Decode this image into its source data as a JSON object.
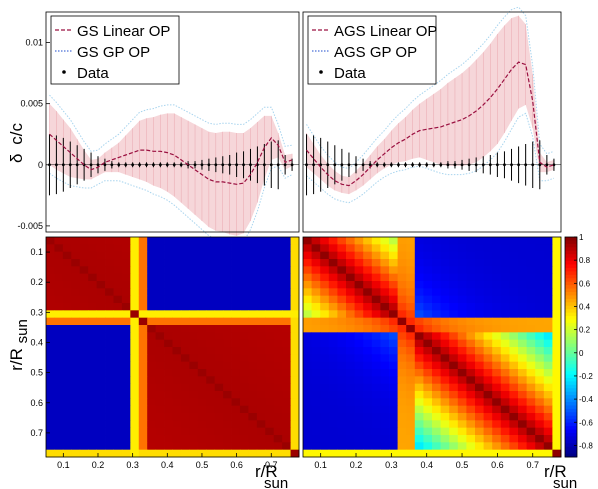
{
  "chart_data": [
    {
      "type": "line",
      "panel": "top-left",
      "ylabel_parts": [
        "δ",
        "c/c"
      ],
      "xlim": [
        0.05,
        0.78
      ],
      "ylim": [
        -0.0055,
        0.0125
      ],
      "yticks": [
        -0.005,
        0,
        0.005,
        0.01
      ],
      "ytick_labels": [
        "-0.005",
        "0",
        "0.005",
        "0.01"
      ],
      "legend_position": "top-left",
      "legend": [
        "GS Linear OP",
        "GS GP OP",
        "Data"
      ],
      "model_x": [
        0.06,
        0.08,
        0.1,
        0.12,
        0.14,
        0.16,
        0.18,
        0.2,
        0.22,
        0.24,
        0.26,
        0.28,
        0.3,
        0.32,
        0.34,
        0.36,
        0.38,
        0.4,
        0.42,
        0.44,
        0.46,
        0.48,
        0.5,
        0.52,
        0.54,
        0.56,
        0.58,
        0.6,
        0.62,
        0.64,
        0.66,
        0.68,
        0.7,
        0.72,
        0.74,
        0.76
      ],
      "linear_y": [
        0.0025,
        0.002,
        0.0015,
        0.001,
        0.0005,
        0.0,
        -0.0004,
        -0.0002,
        0.0002,
        0.0004,
        0.0006,
        0.0008,
        0.001,
        0.0012,
        0.0012,
        0.0011,
        0.0011,
        0.001,
        0.0008,
        0.0004,
        0.0,
        -0.0004,
        -0.0008,
        -0.0012,
        -0.0014,
        -0.0014,
        -0.0015,
        -0.0016,
        -0.0015,
        -0.0008,
        0.0002,
        0.0014,
        0.0022,
        0.0016,
        0.0002,
        0.0004
      ],
      "band_half_width": [
        0.0025,
        0.0024,
        0.0022,
        0.002,
        0.0016,
        0.0012,
        0.0008,
        0.0007,
        0.0008,
        0.001,
        0.0012,
        0.0016,
        0.002,
        0.0024,
        0.0026,
        0.0028,
        0.003,
        0.0032,
        0.0034,
        0.0035,
        0.0036,
        0.0037,
        0.0038,
        0.0039,
        0.004,
        0.0041,
        0.0042,
        0.0042,
        0.0041,
        0.0038,
        0.0033,
        0.0026,
        0.0018,
        0.001,
        0.0006,
        0.0005
      ],
      "gp_offset": 0.0007,
      "data_x": [
        0.06,
        0.08,
        0.1,
        0.12,
        0.14,
        0.16,
        0.18,
        0.2,
        0.22,
        0.24,
        0.26,
        0.28,
        0.3,
        0.32,
        0.34,
        0.36,
        0.38,
        0.4,
        0.42,
        0.44,
        0.46,
        0.48,
        0.5,
        0.52,
        0.54,
        0.56,
        0.58,
        0.6,
        0.62,
        0.64,
        0.66,
        0.68,
        0.7,
        0.72,
        0.74,
        0.76
      ],
      "data_y": [
        0,
        0,
        0,
        0,
        0,
        0,
        0,
        0,
        0,
        0,
        0,
        0,
        0,
        0,
        0,
        0,
        0,
        0,
        0,
        0,
        0,
        0,
        0,
        0,
        0,
        0,
        0,
        0,
        0,
        0,
        0,
        0,
        0,
        0,
        0,
        0
      ],
      "data_err": [
        0.0025,
        0.0024,
        0.0022,
        0.0019,
        0.0016,
        0.0013,
        0.001,
        0.0007,
        0.0005,
        0.0003,
        0.0002,
        0.0002,
        0.0002,
        0.0002,
        0.0002,
        0.0002,
        0.0002,
        0.0002,
        0.0002,
        0.0002,
        0.0003,
        0.0003,
        0.0004,
        0.0005,
        0.0006,
        0.0007,
        0.0008,
        0.001,
        0.0011,
        0.0013,
        0.0015,
        0.0017,
        0.0019,
        0.002,
        0.0008,
        0.0005
      ]
    },
    {
      "type": "line",
      "panel": "top-right",
      "xlim": [
        0.05,
        0.78
      ],
      "ylim": [
        -0.0055,
        0.0125
      ],
      "legend_position": "top-left",
      "legend": [
        "AGS Linear OP",
        "AGS GP OP",
        "Data"
      ],
      "model_x": [
        0.06,
        0.08,
        0.1,
        0.12,
        0.14,
        0.16,
        0.18,
        0.2,
        0.22,
        0.24,
        0.26,
        0.28,
        0.3,
        0.32,
        0.34,
        0.36,
        0.38,
        0.4,
        0.42,
        0.44,
        0.46,
        0.48,
        0.5,
        0.52,
        0.54,
        0.56,
        0.58,
        0.6,
        0.62,
        0.64,
        0.66,
        0.68,
        0.7,
        0.72,
        0.74,
        0.76
      ],
      "linear_y": [
        0.0012,
        0.0005,
        -0.0002,
        -0.0008,
        -0.0013,
        -0.0016,
        -0.0017,
        -0.0013,
        -0.0008,
        -0.0002,
        0.0004,
        0.0009,
        0.0014,
        0.0018,
        0.0021,
        0.0025,
        0.0028,
        0.0029,
        0.003,
        0.0031,
        0.0033,
        0.0035,
        0.0037,
        0.004,
        0.0044,
        0.0049,
        0.0055,
        0.0062,
        0.007,
        0.0078,
        0.0084,
        0.0082,
        0.0052,
        0.0002,
        -0.0002,
        0.0
      ],
      "band_half_width": [
        0.0014,
        0.0012,
        0.001,
        0.0009,
        0.0008,
        0.0007,
        0.0007,
        0.0008,
        0.0009,
        0.001,
        0.0011,
        0.0012,
        0.0014,
        0.0016,
        0.0018,
        0.002,
        0.0022,
        0.0025,
        0.0028,
        0.0031,
        0.0034,
        0.0036,
        0.0038,
        0.004,
        0.0042,
        0.0043,
        0.0044,
        0.0045,
        0.0044,
        0.0042,
        0.0038,
        0.0033,
        0.0022,
        0.0008,
        0.0004,
        0.0004
      ],
      "gp_offset": 0.0007,
      "data_x": [
        0.06,
        0.08,
        0.1,
        0.12,
        0.14,
        0.16,
        0.18,
        0.2,
        0.22,
        0.24,
        0.26,
        0.28,
        0.3,
        0.32,
        0.34,
        0.36,
        0.38,
        0.4,
        0.42,
        0.44,
        0.46,
        0.48,
        0.5,
        0.52,
        0.54,
        0.56,
        0.58,
        0.6,
        0.62,
        0.64,
        0.66,
        0.68,
        0.7,
        0.72,
        0.74,
        0.76
      ],
      "data_y": [
        0,
        0,
        0,
        0,
        0,
        0,
        0,
        0,
        0,
        0,
        0,
        0,
        0,
        0,
        0,
        0,
        0,
        0,
        0,
        0,
        0,
        0,
        0,
        0,
        0,
        0,
        0,
        0,
        0,
        0,
        0,
        0,
        0,
        0,
        0,
        0
      ],
      "data_err": [
        0.0025,
        0.0024,
        0.0022,
        0.0019,
        0.0016,
        0.0013,
        0.001,
        0.0007,
        0.0005,
        0.0003,
        0.0002,
        0.0002,
        0.0002,
        0.0002,
        0.0002,
        0.0002,
        0.0002,
        0.0002,
        0.0002,
        0.0002,
        0.0003,
        0.0003,
        0.0004,
        0.0005,
        0.0006,
        0.0007,
        0.0008,
        0.001,
        0.0011,
        0.0013,
        0.0015,
        0.0017,
        0.0019,
        0.002,
        0.0008,
        0.0005
      ]
    },
    {
      "type": "heatmap",
      "panel": "bottom-left",
      "ylabel_main": "r/R",
      "ylabel_sub": "sun",
      "range": [
        0.05,
        0.78
      ],
      "nbins": 30,
      "xticks": [
        0.1,
        0.2,
        0.3,
        0.4,
        0.5,
        0.6,
        0.7
      ],
      "xtick_labels": [
        "0.1",
        "0.2",
        "0.3",
        "0.4",
        "0.5",
        "0.6",
        "0.7"
      ],
      "yticks": [
        0.1,
        0.2,
        0.3,
        0.4,
        0.5,
        0.6,
        0.7
      ],
      "ytick_labels": [
        "0.1",
        "0.2",
        "0.3",
        "0.4",
        "0.5",
        "0.6",
        "0.7"
      ],
      "model": "sharp",
      "boundaries": [
        0.305,
        0.325,
        0.745
      ]
    },
    {
      "type": "heatmap",
      "panel": "bottom-right",
      "xlabel_main": "r/R",
      "xlabel_sub": "sun",
      "range": [
        0.05,
        0.78
      ],
      "nbins": 30,
      "xticks": [
        0.1,
        0.2,
        0.3,
        0.4,
        0.5,
        0.6,
        0.7
      ],
      "xtick_labels": [
        "0.1",
        "0.2",
        "0.3",
        "0.4",
        "0.5",
        "0.6",
        "0.7"
      ],
      "model": "smooth",
      "boundaries": [
        0.335,
        0.745
      ]
    }
  ],
  "bottom_left_xlabel_main": "r/R",
  "bottom_left_xlabel_sub": "sun",
  "colorbar": {
    "range": [
      -0.9,
      1.0
    ],
    "ticks": [
      1,
      0.8,
      0.6,
      0.4,
      0.2,
      0,
      -0.2,
      -0.4,
      -0.6,
      -0.8
    ],
    "tick_labels": [
      "1",
      "0.8",
      "0.6",
      "0.4",
      "0.2",
      "0",
      "-0.2",
      "-0.4",
      "-0.6",
      "-0.8"
    ],
    "colormap": "jet"
  },
  "colors": {
    "linear_line": "#9a1040",
    "gp_line": "#4a6fd8",
    "band_fill": "#f3c8cc",
    "band_edge": "#a8d4ee",
    "data": "#000000"
  }
}
